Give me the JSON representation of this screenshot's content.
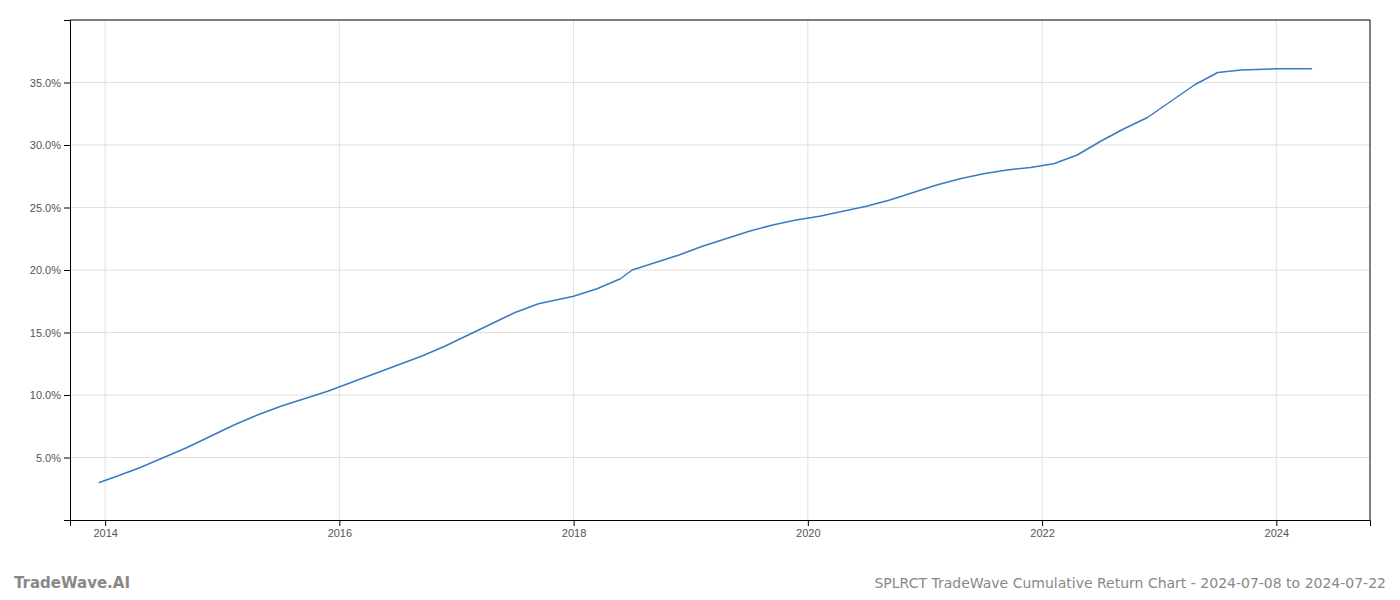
{
  "chart_data": {
    "type": "line",
    "title": "SPLRCT TradeWave Cumulative Return Chart - 2024-07-08 to 2024-07-22",
    "annotations": [
      "TradeWave.AI"
    ],
    "x": [
      2013.95,
      2014.1,
      2014.3,
      2014.5,
      2014.7,
      2014.9,
      2015.1,
      2015.3,
      2015.5,
      2015.7,
      2015.9,
      2016.1,
      2016.3,
      2016.5,
      2016.7,
      2016.9,
      2017.1,
      2017.3,
      2017.5,
      2017.7,
      2017.9,
      2018.0,
      2018.2,
      2018.4,
      2018.5,
      2018.7,
      2018.9,
      2019.1,
      2019.3,
      2019.5,
      2019.7,
      2019.9,
      2020.1,
      2020.3,
      2020.5,
      2020.7,
      2020.9,
      2021.1,
      2021.3,
      2021.5,
      2021.7,
      2021.9,
      2022.1,
      2022.3,
      2022.5,
      2022.7,
      2022.9,
      2023.1,
      2023.3,
      2023.5,
      2023.7,
      2024.0,
      2024.3
    ],
    "values": [
      3.0,
      3.5,
      4.2,
      5.0,
      5.8,
      6.7,
      7.6,
      8.4,
      9.1,
      9.7,
      10.3,
      11.0,
      11.7,
      12.4,
      13.1,
      13.9,
      14.8,
      15.7,
      16.6,
      17.3,
      17.7,
      17.9,
      18.5,
      19.3,
      20.0,
      20.6,
      21.2,
      21.9,
      22.5,
      23.1,
      23.6,
      24.0,
      24.3,
      24.7,
      25.1,
      25.6,
      26.2,
      26.8,
      27.3,
      27.7,
      28.0,
      28.2,
      28.5,
      29.2,
      30.3,
      31.3,
      32.2,
      33.5,
      34.8,
      35.8,
      36.0,
      36.1,
      36.1
    ],
    "color": "#3a7abf",
    "xlim": [
      2013.7,
      2024.8
    ],
    "xticks": [
      2014,
      2016,
      2018,
      2020,
      2022,
      2024
    ],
    "ylim": [
      0,
      40
    ],
    "yticks": [
      {
        "value": 5.0,
        "label": "5.0%"
      },
      {
        "value": 10.0,
        "label": "10.0%"
      },
      {
        "value": 15.0,
        "label": "15.0%"
      },
      {
        "value": 20.0,
        "label": "20.0%"
      },
      {
        "value": 25.0,
        "label": "25.0%"
      },
      {
        "value": 30.0,
        "label": "30.0%"
      },
      {
        "value": 35.0,
        "label": "35.0%"
      }
    ],
    "grid": true
  }
}
